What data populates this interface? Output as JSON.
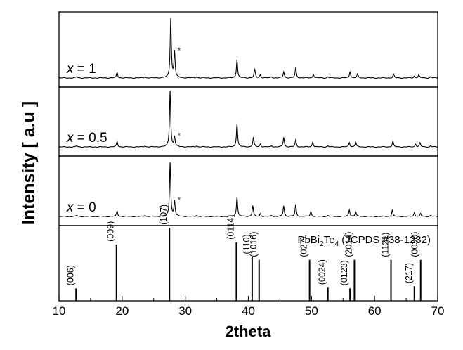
{
  "chart_data": {
    "type": "line",
    "title": "",
    "xlabel": "2theta",
    "ylabel": "Intensity [ a.u ]",
    "xlim": [
      10,
      70
    ],
    "xticks": [
      10,
      20,
      30,
      40,
      50,
      60,
      70
    ],
    "grid": false,
    "series": [
      {
        "label_prefix": "x",
        "label_value": " = 1",
        "marker_2theta": 28.3,
        "peaks": [
          {
            "x": 12.8,
            "h": 0.02
          },
          {
            "x": 19.2,
            "h": 0.09
          },
          {
            "x": 23.6,
            "h": 0.02
          },
          {
            "x": 27.7,
            "h": 0.95
          },
          {
            "x": 28.3,
            "h": 0.42
          },
          {
            "x": 31.8,
            "h": 0.02
          },
          {
            "x": 38.2,
            "h": 0.3
          },
          {
            "x": 41.0,
            "h": 0.14
          },
          {
            "x": 41.9,
            "h": 0.05
          },
          {
            "x": 43.7,
            "h": 0.02
          },
          {
            "x": 45.6,
            "h": 0.1
          },
          {
            "x": 47.5,
            "h": 0.16
          },
          {
            "x": 50.3,
            "h": 0.06
          },
          {
            "x": 52.6,
            "h": 0.02
          },
          {
            "x": 56.1,
            "h": 0.1
          },
          {
            "x": 57.3,
            "h": 0.06
          },
          {
            "x": 63.0,
            "h": 0.06
          },
          {
            "x": 66.3,
            "h": 0.03
          },
          {
            "x": 67.0,
            "h": 0.05
          },
          {
            "x": 68.9,
            "h": 0.02
          }
        ]
      },
      {
        "label_prefix": "x",
        "label_value": " = 0.5",
        "marker_2theta": 28.3,
        "peaks": [
          {
            "x": 12.8,
            "h": 0.02
          },
          {
            "x": 19.2,
            "h": 0.1
          },
          {
            "x": 23.6,
            "h": 0.02
          },
          {
            "x": 27.6,
            "h": 1.0
          },
          {
            "x": 28.3,
            "h": 0.18
          },
          {
            "x": 31.8,
            "h": 0.02
          },
          {
            "x": 38.2,
            "h": 0.42
          },
          {
            "x": 40.8,
            "h": 0.17
          },
          {
            "x": 41.9,
            "h": 0.05
          },
          {
            "x": 43.7,
            "h": 0.02
          },
          {
            "x": 45.6,
            "h": 0.17
          },
          {
            "x": 47.5,
            "h": 0.12
          },
          {
            "x": 50.2,
            "h": 0.09
          },
          {
            "x": 52.6,
            "h": 0.02
          },
          {
            "x": 56.0,
            "h": 0.08
          },
          {
            "x": 57.0,
            "h": 0.09
          },
          {
            "x": 62.9,
            "h": 0.1
          },
          {
            "x": 66.5,
            "h": 0.05
          },
          {
            "x": 67.2,
            "h": 0.07
          },
          {
            "x": 68.9,
            "h": 0.02
          }
        ]
      },
      {
        "label_prefix": "x",
        "label_value": " = 0",
        "marker_2theta": 28.3,
        "peaks": [
          {
            "x": 12.8,
            "h": 0.02
          },
          {
            "x": 19.2,
            "h": 0.1
          },
          {
            "x": 23.6,
            "h": 0.02
          },
          {
            "x": 27.6,
            "h": 0.95
          },
          {
            "x": 28.3,
            "h": 0.27
          },
          {
            "x": 31.8,
            "h": 0.02
          },
          {
            "x": 38.2,
            "h": 0.35
          },
          {
            "x": 40.7,
            "h": 0.19
          },
          {
            "x": 41.9,
            "h": 0.05
          },
          {
            "x": 43.7,
            "h": 0.02
          },
          {
            "x": 45.6,
            "h": 0.19
          },
          {
            "x": 47.5,
            "h": 0.21
          },
          {
            "x": 49.9,
            "h": 0.09
          },
          {
            "x": 52.6,
            "h": 0.02
          },
          {
            "x": 56.0,
            "h": 0.12
          },
          {
            "x": 57.0,
            "h": 0.09
          },
          {
            "x": 62.8,
            "h": 0.11
          },
          {
            "x": 66.3,
            "h": 0.07
          },
          {
            "x": 67.3,
            "h": 0.05
          },
          {
            "x": 68.9,
            "h": 0.02
          }
        ]
      }
    ],
    "reference": {
      "title_prefix": "PbBi",
      "title_sub1": "2",
      "title_mid": "Te",
      "title_sub2": "4",
      "title_suffix": " (JCPDS #38-1232)",
      "lines": [
        {
          "x": 12.7,
          "h": 0.17,
          "hkl": "(006)"
        },
        {
          "x": 19.1,
          "h": 0.77,
          "hkl": "(009)"
        },
        {
          "x": 27.5,
          "h": 1.0,
          "hkl": "(107)"
        },
        {
          "x": 38.1,
          "h": 0.8,
          "hkl": "(0114)"
        },
        {
          "x": 40.6,
          "h": 0.6,
          "hkl": "(110)"
        },
        {
          "x": 41.7,
          "h": 0.56,
          "hkl": "(1016)"
        },
        {
          "x": 49.7,
          "h": 0.56,
          "hkl": "(027)"
        },
        {
          "x": 52.6,
          "h": 0.18,
          "hkl": "(0024)"
        },
        {
          "x": 56.1,
          "h": 0.17,
          "hkl": "(0123)"
        },
        {
          "x": 56.8,
          "h": 0.56,
          "hkl": "(2014)"
        },
        {
          "x": 62.6,
          "h": 0.56,
          "hkl": "(1121)"
        },
        {
          "x": 66.3,
          "h": 0.2,
          "hkl": "(217)"
        },
        {
          "x": 67.3,
          "h": 0.56,
          "hkl": "(0030)"
        }
      ]
    }
  }
}
